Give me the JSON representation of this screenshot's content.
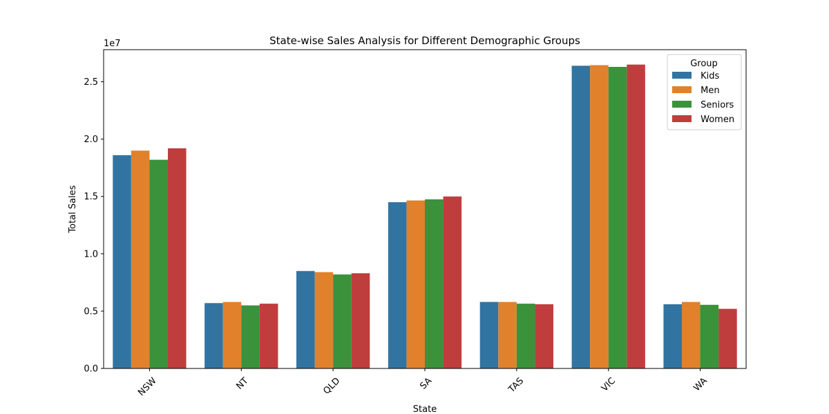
{
  "chart_data": {
    "type": "bar",
    "title": "State-wise Sales Analysis for Different Demographic Groups",
    "xlabel": "State",
    "ylabel": "Total Sales",
    "y_offset_label": "1e7",
    "categories": [
      "NSW",
      "NT",
      "QLD",
      "SA",
      "TAS",
      "VIC",
      "WA"
    ],
    "ylim": [
      0,
      27800000
    ],
    "yticks": [
      0,
      5000000,
      10000000,
      15000000,
      20000000,
      25000000
    ],
    "ytick_labels": [
      "0.0",
      "0.5",
      "1.0",
      "1.5",
      "2.0",
      "2.5"
    ],
    "legend": {
      "title": "Group",
      "placement": "top-right"
    },
    "grid": false,
    "series": [
      {
        "name": " Kids",
        "color": "#3274a1",
        "values": [
          18600000,
          5700000,
          8500000,
          14500000,
          5800000,
          26400000,
          5600000
        ]
      },
      {
        "name": " Men",
        "color": "#e1812c",
        "values": [
          19000000,
          5800000,
          8400000,
          14650000,
          5800000,
          26450000,
          5800000
        ]
      },
      {
        "name": " Seniors",
        "color": "#3a923a",
        "values": [
          18200000,
          5500000,
          8200000,
          14750000,
          5650000,
          26300000,
          5550000
        ]
      },
      {
        "name": " Women",
        "color": "#c03d3e",
        "values": [
          19200000,
          5650000,
          8300000,
          15000000,
          5600000,
          26500000,
          5200000
        ]
      }
    ]
  }
}
